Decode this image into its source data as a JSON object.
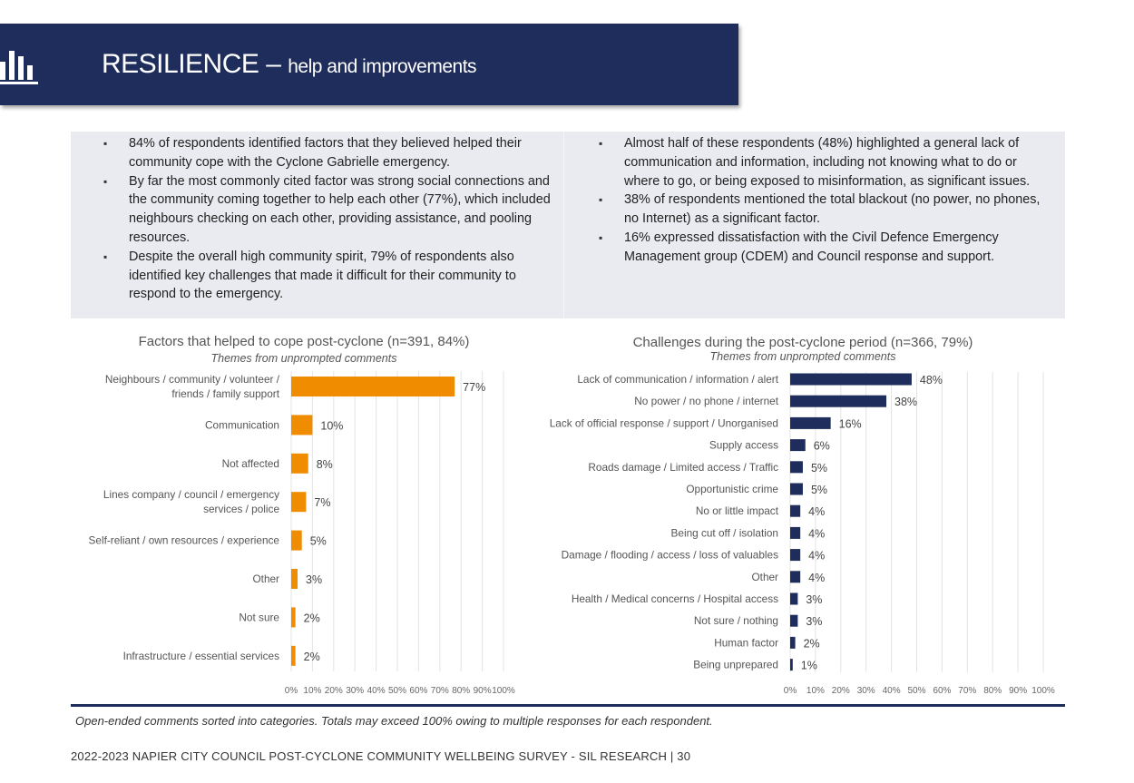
{
  "header": {
    "title_main": "RESILIENCE – ",
    "title_sub": "help and improvements",
    "logo_icon": "bar-chart-icon",
    "background": "#1f2d5c"
  },
  "summary": {
    "left": [
      "84% of respondents identified factors that they believed helped their community cope with the Cyclone Gabrielle emergency.",
      "By far the most commonly cited factor was strong social connections and the community coming together to help each other (77%), which included neighbours checking on each other, providing assistance, and pooling resources.",
      "Despite the overall high community spirit, 79% of respondents also identified key challenges that made it difficult for their community to respond to the emergency."
    ],
    "right": [
      "Almost half of these respondents (48%) highlighted a general lack of communication and information, including not knowing what to do or where to go, or being exposed to misinformation, as significant issues.",
      "38% of respondents mentioned the total blackout (no power, no phones, no Internet) as a significant factor.",
      "16% expressed dissatisfaction with the Civil Defence Emergency Management group (CDEM) and Council response and support."
    ]
  },
  "chart_data": [
    {
      "type": "bar",
      "orientation": "horizontal",
      "title": "Factors that helped to cope post-cyclone (n=391, 84%)",
      "subtitle": "Themes from unprompted comments",
      "color": "#f08c00",
      "categories": [
        [
          "Neighbours / community / volunteer /",
          "friends / family support"
        ],
        [
          "Communication"
        ],
        [
          "Not affected"
        ],
        [
          "Lines company / council / emergency",
          "services / police"
        ],
        [
          "Self-reliant / own resources / experience"
        ],
        [
          "Other"
        ],
        [
          "Not sure"
        ],
        [
          "Infrastructure / essential services"
        ]
      ],
      "values": [
        77,
        10,
        8,
        7,
        5,
        3,
        2,
        2
      ],
      "value_suffix": "%",
      "xlim": [
        0,
        100
      ],
      "xticks": [
        "0%",
        "10%",
        "20%",
        "30%",
        "40%",
        "50%",
        "60%",
        "70%",
        "80%",
        "90%",
        "100%"
      ],
      "grid": true
    },
    {
      "type": "bar",
      "orientation": "horizontal",
      "title": "Challenges during the post-cyclone period (n=366, 79%)",
      "subtitle": "Themes from unprompted comments",
      "color": "#1f2d5c",
      "categories": [
        [
          "Lack of communication / information / alert"
        ],
        [
          "No power / no phone / internet"
        ],
        [
          "Lack of official response / support / Unorganised"
        ],
        [
          "Supply access"
        ],
        [
          "Roads damage / Limited access / Traffic"
        ],
        [
          "Opportunistic crime"
        ],
        [
          "No or little impact"
        ],
        [
          "Being cut off / isolation"
        ],
        [
          "Damage / flooding / access / loss of valuables"
        ],
        [
          "Other"
        ],
        [
          "Health / Medical concerns / Hospital access"
        ],
        [
          "Not sure / nothing"
        ],
        [
          "Human factor"
        ],
        [
          "Being unprepared"
        ]
      ],
      "values": [
        48,
        38,
        16,
        6,
        5,
        5,
        4,
        4,
        4,
        4,
        3,
        3,
        2,
        1
      ],
      "value_suffix": "%",
      "xlim": [
        0,
        100
      ],
      "xticks": [
        "0%",
        "10%",
        "20%",
        "30%",
        "40%",
        "50%",
        "60%",
        "70%",
        "80%",
        "90%",
        "100%"
      ],
      "grid": true
    }
  ],
  "note": "Open-ended comments sorted into categories. Totals may exceed 100% owing to multiple responses for each respondent.",
  "footer": "2022-2023 NAPIER CITY COUNCIL POST-CYCLONE COMMUNITY WELLBEING SURVEY - SIL RESEARCH | 30"
}
